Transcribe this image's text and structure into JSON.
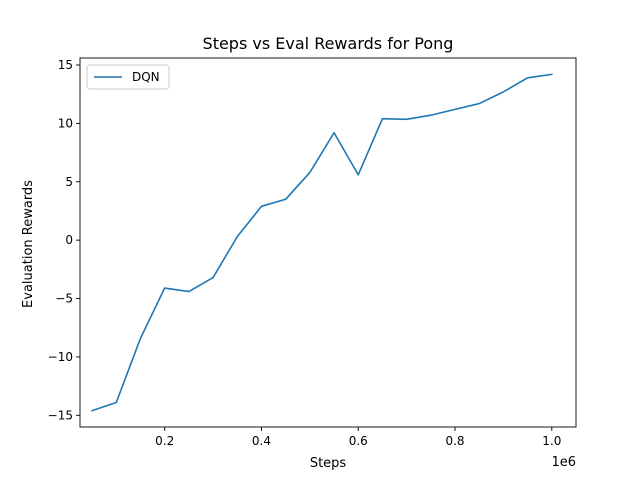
{
  "chart_data": {
    "type": "line",
    "title": "Steps vs Eval Rewards for Pong",
    "xlabel": "Steps",
    "ylabel": "Evaluation Rewards",
    "x_offset_label": "1e6",
    "xlim": [
      25000,
      1050000
    ],
    "ylim": [
      -16,
      15.6
    ],
    "x_ticks": [
      200000,
      400000,
      600000,
      800000,
      1000000
    ],
    "x_tick_labels": [
      "0.2",
      "0.4",
      "0.6",
      "0.8",
      "1.0"
    ],
    "y_ticks": [
      -15,
      -10,
      -5,
      0,
      5,
      10,
      15
    ],
    "y_tick_labels": [
      "−15",
      "−10",
      "−5",
      "0",
      "5",
      "10",
      "15"
    ],
    "grid": false,
    "legend_position": "top-left",
    "series": [
      {
        "name": "DQN",
        "color": "#1f77b4",
        "x": [
          50000,
          100000,
          150000,
          200000,
          250000,
          300000,
          350000,
          400000,
          450000,
          500000,
          550000,
          600000,
          650000,
          700000,
          750000,
          800000,
          850000,
          900000,
          950000,
          1000000
        ],
        "y": [
          -14.6,
          -13.9,
          -8.4,
          -4.1,
          -4.4,
          -3.2,
          0.3,
          2.9,
          3.5,
          5.8,
          9.2,
          5.6,
          10.4,
          10.35,
          10.7,
          11.2,
          11.7,
          12.7,
          13.9,
          14.2
        ]
      }
    ]
  }
}
